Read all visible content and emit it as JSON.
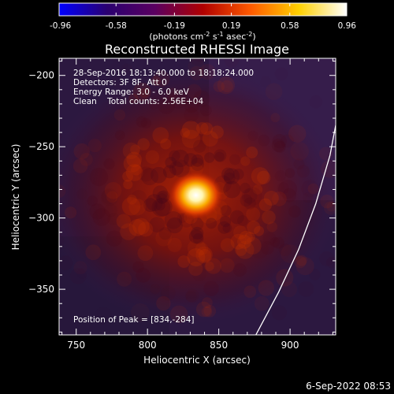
{
  "chart_data": {
    "type": "heatmap",
    "title": "Reconstructed RHESSI Image",
    "colorbar": {
      "label_main": "(photons cm",
      "label_sup1": "-2",
      "label_mid1": " s",
      "label_sup2": "-1",
      "label_mid2": " asec",
      "label_sup3": "-2",
      "label_end": ")",
      "min": -0.96,
      "max": 0.96,
      "ticks": [
        "-0.96",
        "-0.58",
        "-0.19",
        "0.19",
        "0.58",
        "0.96"
      ],
      "colors": [
        "#0000ff",
        "#2a0070",
        "#5a0060",
        "#b00000",
        "#ff5a00",
        "#ffd000",
        "#ffffff"
      ]
    },
    "xlabel": "Heliocentric X (arcsec)",
    "ylabel": "Heliocentric Y (arcsec)",
    "xlim": [
      738,
      932
    ],
    "ylim": [
      -382,
      -188
    ],
    "x_ticks": [
      750,
      800,
      850,
      900
    ],
    "y_ticks": [
      -200,
      -250,
      -300,
      -350
    ],
    "peak": {
      "x": 834,
      "y": -284,
      "value": 0.96
    },
    "annotations": {
      "line1": "28-Sep-2016 18:13:40.000 to 18:18:24.000",
      "line2": "Detectors: 3F 8F, Att 0",
      "line3": "Energy Range: 3.0 - 6.0 keV",
      "line4": "Clean    Total counts: 2.56E+04",
      "peak_text": "Position of Peak = [834,-284]"
    },
    "limb_curve": [
      [
        876,
        -382
      ],
      [
        892,
        -352
      ],
      [
        906,
        -322
      ],
      [
        918,
        -290
      ],
      [
        928,
        -256
      ],
      [
        932,
        -235
      ]
    ]
  },
  "footer": {
    "timestamp": "6-Sep-2022 08:53"
  },
  "colors": {
    "background": "#000000",
    "text": "#ffffff"
  }
}
